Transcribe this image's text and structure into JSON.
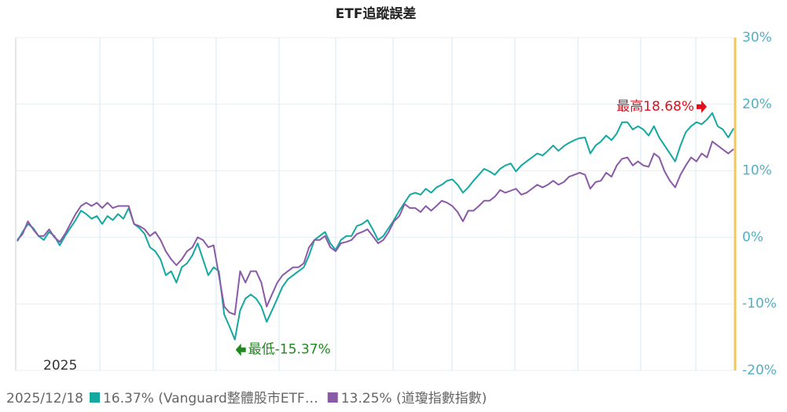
{
  "chart_data": {
    "type": "line",
    "title": "ETF追蹤誤差",
    "x_label": "2025",
    "ylim": [
      -20,
      30
    ],
    "yticks": [
      {
        "value": -20,
        "label": "-20%"
      },
      {
        "value": -10,
        "label": "-10%"
      },
      {
        "value": 0,
        "label": "0%"
      },
      {
        "value": 10,
        "label": "10%"
      },
      {
        "value": 20,
        "label": "20%"
      },
      {
        "value": 30,
        "label": "30%"
      }
    ],
    "grid": true,
    "legend_position": "bottom",
    "legend_date": "2025/12/18",
    "annotations": [
      {
        "text": "最高18.68%",
        "color": "#e0101e",
        "at": "max"
      },
      {
        "text": "最低-15.37%",
        "color": "#1e8a1e",
        "at": "min"
      }
    ],
    "series": [
      {
        "name": "16.37% (Vanguard整體股市ETF…",
        "color": "#14a8a0",
        "values": [
          -0.6,
          0.8,
          2.0,
          1.4,
          0.2,
          -0.4,
          0.8,
          0.2,
          -1.2,
          0.2,
          1.4,
          2.6,
          4.0,
          3.5,
          2.8,
          3.2,
          2.0,
          3.2,
          2.6,
          3.5,
          2.8,
          4.4,
          2.0,
          1.4,
          0.5,
          -1.5,
          -2.1,
          -3.3,
          -5.7,
          -5.1,
          -6.8,
          -4.5,
          -3.9,
          -2.7,
          -0.9,
          -3.3,
          -5.7,
          -4.5,
          -5.1,
          -11.6,
          -13.4,
          -15.37,
          -11.0,
          -9.2,
          -8.6,
          -9.2,
          -10.4,
          -12.7,
          -11.0,
          -9.2,
          -7.4,
          -6.3,
          -5.7,
          -5.1,
          -4.5,
          -2.7,
          -0.4,
          0.2,
          0.8,
          -0.9,
          -1.9,
          -0.4,
          0.2,
          0.2,
          1.7,
          2.0,
          2.6,
          1.2,
          -0.4,
          0.2,
          1.4,
          2.6,
          4.0,
          5.2,
          6.4,
          6.7,
          6.4,
          7.3,
          6.7,
          7.5,
          7.9,
          8.5,
          8.7,
          7.9,
          6.7,
          7.5,
          8.5,
          9.4,
          10.3,
          9.9,
          9.4,
          10.3,
          10.8,
          11.1,
          9.9,
          10.8,
          11.4,
          12.0,
          12.6,
          12.3,
          13.0,
          13.8,
          13.0,
          13.7,
          14.2,
          14.6,
          14.9,
          15.0,
          12.6,
          13.8,
          14.4,
          15.3,
          14.6,
          15.6,
          17.3,
          17.3,
          16.2,
          16.7,
          16.2,
          15.3,
          16.7,
          15.0,
          13.8,
          12.6,
          11.4,
          13.8,
          15.8,
          16.7,
          17.3,
          17.0,
          17.7,
          18.68,
          16.7,
          16.2,
          15.0,
          16.37
        ]
      },
      {
        "name": "13.25% (道瓊指數指數)",
        "color": "#8a5aa8",
        "values": [
          -0.4,
          0.5,
          2.4,
          1.2,
          0.2,
          0.2,
          1.2,
          0.0,
          -0.7,
          0.5,
          2.0,
          3.5,
          4.7,
          5.2,
          4.7,
          5.2,
          4.4,
          5.2,
          4.4,
          4.7,
          4.7,
          4.7,
          2.0,
          1.7,
          1.2,
          0.2,
          0.8,
          -0.4,
          -2.1,
          -3.3,
          -4.2,
          -3.3,
          -2.1,
          -1.5,
          0.0,
          -0.4,
          -1.5,
          -1.2,
          -5.7,
          -10.4,
          -11.3,
          -11.6,
          -5.1,
          -6.8,
          -5.1,
          -5.1,
          -6.8,
          -10.4,
          -8.6,
          -6.8,
          -5.7,
          -5.1,
          -4.5,
          -4.5,
          -3.9,
          -1.5,
          -0.4,
          -0.4,
          0.2,
          -1.5,
          -2.1,
          -0.9,
          -0.7,
          -0.4,
          0.5,
          0.8,
          1.2,
          0.2,
          -0.9,
          -0.4,
          0.8,
          2.4,
          3.2,
          5.0,
          4.4,
          4.4,
          3.8,
          4.7,
          4.0,
          4.7,
          5.5,
          5.2,
          4.7,
          3.8,
          2.4,
          4.0,
          4.0,
          4.7,
          5.5,
          5.5,
          6.1,
          7.1,
          6.7,
          7.0,
          7.3,
          6.4,
          6.7,
          7.3,
          7.9,
          7.5,
          7.9,
          8.5,
          7.9,
          8.3,
          9.1,
          9.4,
          9.7,
          9.4,
          7.3,
          8.3,
          8.5,
          9.7,
          9.1,
          10.8,
          11.8,
          12.0,
          10.8,
          11.4,
          10.8,
          10.6,
          12.6,
          12.0,
          9.9,
          8.5,
          7.5,
          9.4,
          10.8,
          12.0,
          11.4,
          12.6,
          12.0,
          14.4,
          13.8,
          13.2,
          12.6,
          13.25
        ]
      }
    ]
  }
}
